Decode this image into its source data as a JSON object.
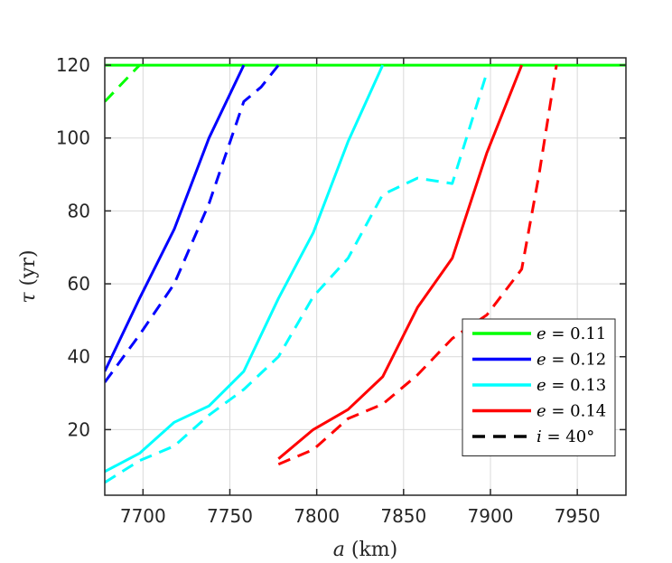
{
  "chart_data": {
    "type": "line",
    "xlabel": "a (km)",
    "ylabel": "τ (yr)",
    "xlim": [
      7678,
      7978
    ],
    "ylim": [
      2,
      122
    ],
    "xticks": [
      7700,
      7750,
      7800,
      7850,
      7900,
      7950
    ],
    "yticks": [
      20,
      40,
      60,
      80,
      100,
      120
    ],
    "grid": true,
    "legend_position": "lower-right",
    "series": [
      {
        "name": "e = 0.11",
        "color": "#00ff00",
        "dash": "solid",
        "x": [
          7678,
          7978
        ],
        "y": [
          120,
          120
        ]
      },
      {
        "name": "e = 0.12",
        "color": "#0000ff",
        "dash": "solid",
        "x": [
          7678,
          7698,
          7718,
          7738,
          7758
        ],
        "y": [
          36,
          56,
          75,
          100,
          120
        ]
      },
      {
        "name": "e = 0.13",
        "color": "#00ffff",
        "dash": "solid",
        "x": [
          7678,
          7698,
          7718,
          7738,
          7758,
          7778,
          7798,
          7818,
          7838
        ],
        "y": [
          8.5,
          13.5,
          22,
          26.5,
          36,
          56,
          74,
          99,
          120
        ]
      },
      {
        "name": "e = 0.14",
        "color": "#ff0000",
        "dash": "solid",
        "x": [
          7778,
          7798,
          7818,
          7838,
          7858,
          7878,
          7898,
          7918
        ],
        "y": [
          12,
          20,
          25.5,
          34.5,
          53.5,
          67,
          96,
          120
        ]
      },
      {
        "name": "",
        "color": "#00ff00",
        "dash": "dashed",
        "x": [
          7678,
          7698
        ],
        "y": [
          110,
          120
        ]
      },
      {
        "name": "",
        "color": "#0000ff",
        "dash": "dashed",
        "x": [
          7678,
          7698,
          7718,
          7738,
          7758,
          7768,
          7778
        ],
        "y": [
          33,
          46,
          60,
          82,
          110,
          114,
          120
        ]
      },
      {
        "name": "",
        "color": "#00ffff",
        "dash": "dashed",
        "x": [
          7678,
          7698,
          7718,
          7738,
          7758,
          7778,
          7798,
          7818,
          7838,
          7858,
          7878,
          7898
        ],
        "y": [
          5.5,
          11.5,
          15.5,
          24,
          31,
          40,
          56.5,
          67,
          84.5,
          89,
          87.5,
          118
        ]
      },
      {
        "name": "",
        "color": "#ff0000",
        "dash": "dashed",
        "x": [
          7778,
          7798,
          7818,
          7838,
          7858,
          7878,
          7898,
          7918,
          7928,
          7938
        ],
        "y": [
          10.5,
          14.5,
          23,
          27,
          35,
          45,
          51.5,
          64,
          90,
          120
        ]
      }
    ],
    "legend": [
      {
        "label": "e = 0.11",
        "color": "#00ff00",
        "dash": "solid"
      },
      {
        "label": "e = 0.12",
        "color": "#0000ff",
        "dash": "solid"
      },
      {
        "label": "e = 0.13",
        "color": "#00ffff",
        "dash": "solid"
      },
      {
        "label": "e = 0.14",
        "color": "#ff0000",
        "dash": "solid"
      },
      {
        "label": "i = 40°",
        "color": "#000000",
        "dash": "dashed"
      }
    ]
  }
}
